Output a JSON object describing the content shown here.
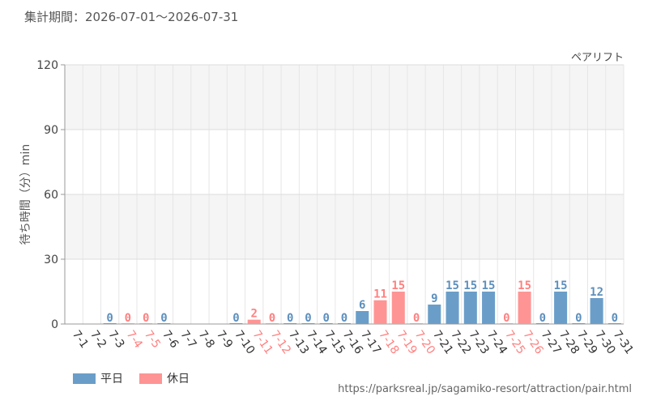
{
  "header": {
    "period": "集計期間：2026-07-01～2026-07-31"
  },
  "chart_data": {
    "type": "bar",
    "series_title": "ペアリフト",
    "ylabel": "待ち時間（分）min",
    "ylim": [
      0,
      120
    ],
    "yticks": [
      0,
      30,
      60,
      90,
      120
    ],
    "grid": true,
    "legend_position": "bottom-left",
    "categories": [
      "7-1",
      "7-2",
      "7-3",
      "7-4",
      "7-5",
      "7-6",
      "7-7",
      "7-8",
      "7-9",
      "7-10",
      "7-11",
      "7-12",
      "7-13",
      "7-14",
      "7-15",
      "7-16",
      "7-17",
      "7-18",
      "7-19",
      "7-20",
      "7-21",
      "7-22",
      "7-23",
      "7-24",
      "7-25",
      "7-26",
      "7-27",
      "7-28",
      "7-29",
      "7-30",
      "7-31"
    ],
    "values": [
      null,
      null,
      0,
      0,
      0,
      0,
      null,
      null,
      null,
      0,
      2,
      0,
      0,
      0,
      0,
      0,
      6,
      11,
      15,
      0,
      9,
      15,
      15,
      15,
      0,
      15,
      0,
      15,
      0,
      12,
      0
    ],
    "day_type": [
      "weekday",
      "weekday",
      "weekday",
      "holiday",
      "holiday",
      "weekday",
      "weekday",
      "weekday",
      "weekday",
      "weekday",
      "holiday",
      "holiday",
      "weekday",
      "weekday",
      "weekday",
      "weekday",
      "weekday",
      "holiday",
      "holiday",
      "holiday",
      "weekday",
      "weekday",
      "weekday",
      "weekday",
      "holiday",
      "holiday",
      "weekday",
      "weekday",
      "weekday",
      "weekday",
      "weekday"
    ],
    "legend": [
      {
        "key": "weekday",
        "label": "平日",
        "color": "#6a9ec9"
      },
      {
        "key": "holiday",
        "label": "休日",
        "color": "#ff9494"
      }
    ],
    "label_colors": {
      "weekday": "#333333",
      "holiday": "#ff8080"
    },
    "value_label_colors": {
      "weekday": "#5c8fbd",
      "holiday": "#ff8080"
    }
  },
  "footer": {
    "source": "https://parksreal.jp/sagamiko-resort/attraction/pair.html"
  }
}
